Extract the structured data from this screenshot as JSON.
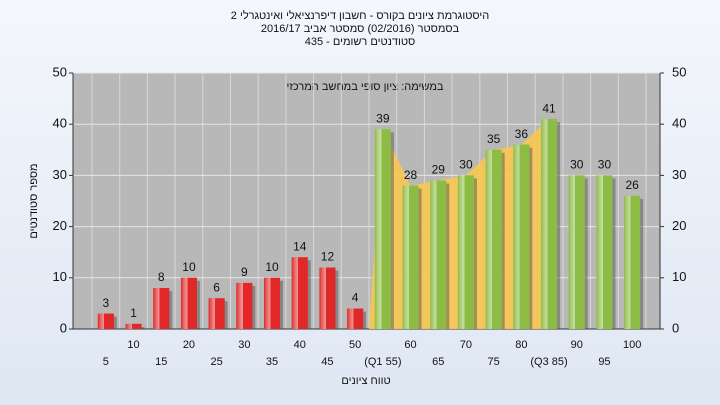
{
  "chart_data": {
    "type": "bar",
    "title_lines": [
      "היסטוגרמת ציונים בקורס - חשבון דיפרנציאלי ואינטגרלי 2",
      "בסמסטר  (02/2016)  סמסטר אביב 2016/17",
      "סטודנטים רשומים - 435"
    ],
    "annotation": "במשימה: ציון סופי במחשב המרכזי",
    "x_label": "טווח ציונים",
    "y_label": "מספר סטודנטים",
    "categories": [
      "5",
      "10",
      "15",
      "20",
      "25",
      "30",
      "35",
      "40",
      "45",
      "50",
      "(Q1 55)",
      "60",
      "65",
      "70",
      "75",
      "80",
      "(Q3 85)",
      "90",
      "95",
      "100"
    ],
    "values": [
      3,
      1,
      8,
      10,
      6,
      9,
      10,
      14,
      12,
      4,
      39,
      28,
      29,
      30,
      35,
      36,
      41,
      30,
      30,
      26
    ],
    "colors": [
      "#e02828",
      "#e02828",
      "#e02828",
      "#e02828",
      "#e02828",
      "#e02828",
      "#e02828",
      "#e02828",
      "#e02828",
      "#e02828",
      "#8cbc44",
      "#8cbc44",
      "#8cbc44",
      "#8cbc44",
      "#8cbc44",
      "#8cbc44",
      "#8cbc44",
      "#8cbc44",
      "#8cbc44",
      "#8cbc44"
    ],
    "area_color": "#f8c850",
    "ylim": [
      0,
      50
    ],
    "yticks": [
      0,
      10,
      20,
      30,
      40,
      50
    ],
    "grid": true
  }
}
